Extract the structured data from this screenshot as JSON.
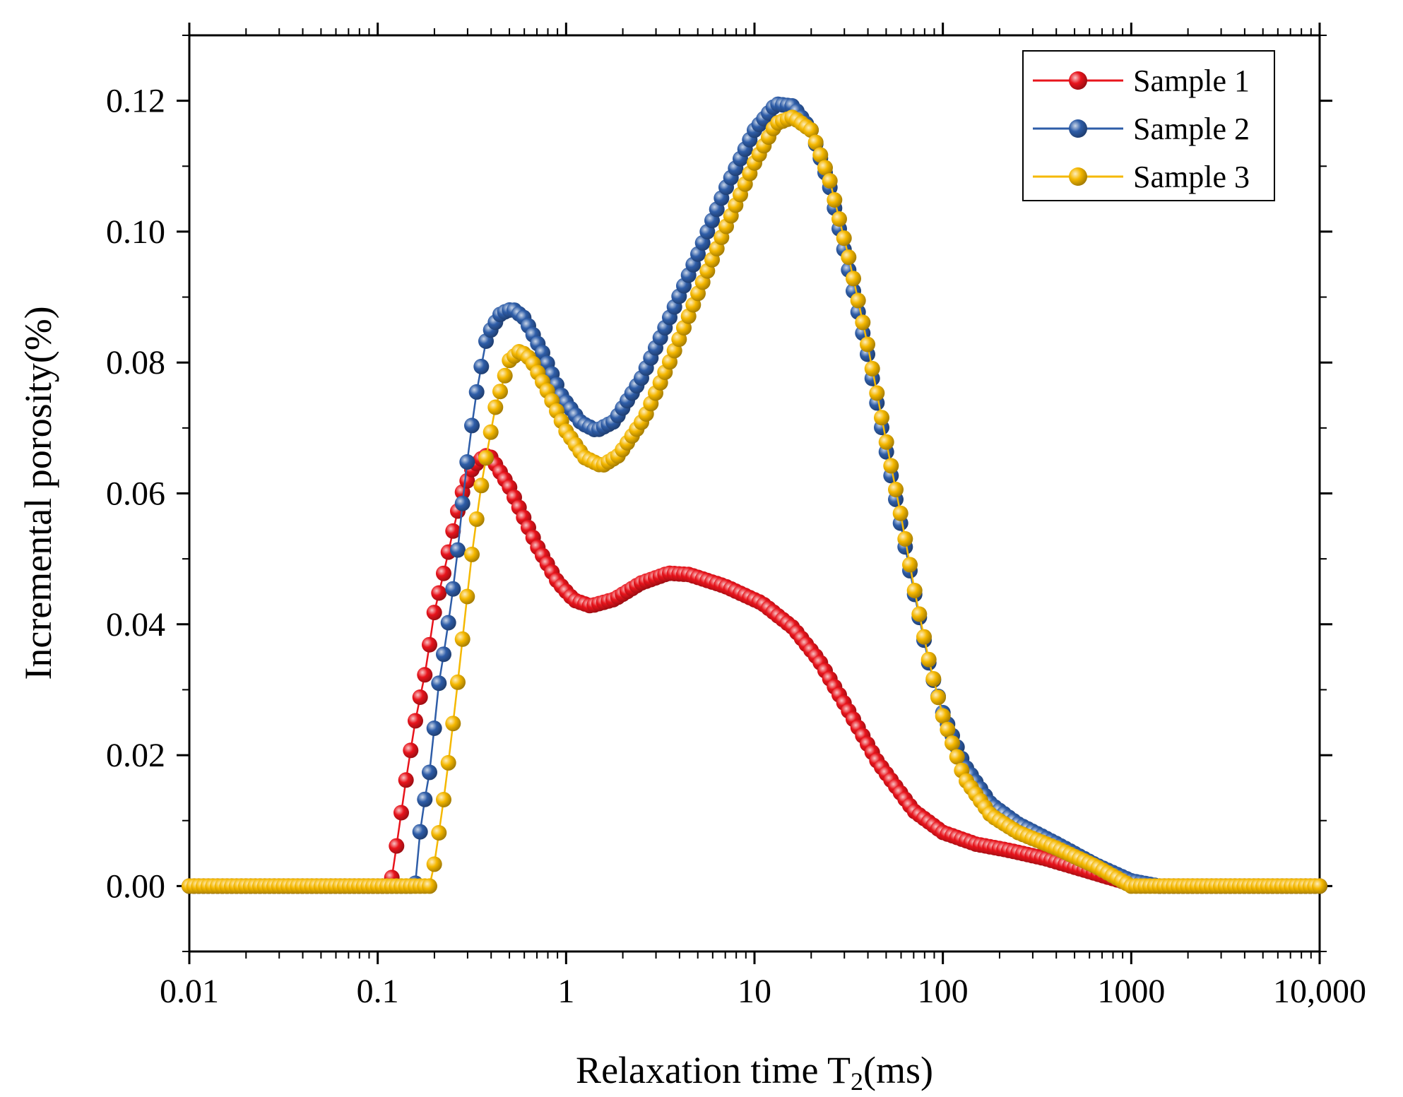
{
  "chart_data": {
    "type": "scatter",
    "title": "",
    "xlabel": "Relaxation time T",
    "xlabel_subscript": "2",
    "xlabel_suffix": "(ms)",
    "ylabel": "Incremental porosity(%)",
    "xscale": "log",
    "xlim": [
      0.01,
      10000
    ],
    "ylim": [
      -0.01,
      0.13
    ],
    "x_ticks": [
      {
        "value": 0.01,
        "label": "0.01"
      },
      {
        "value": 0.1,
        "label": "0.1"
      },
      {
        "value": 1,
        "label": "1"
      },
      {
        "value": 10,
        "label": "10"
      },
      {
        "value": 100,
        "label": "100"
      },
      {
        "value": 1000,
        "label": "1000"
      },
      {
        "value": 10000,
        "label": "10,000"
      }
    ],
    "y_ticks": [
      {
        "value": 0.0,
        "label": "0.00"
      },
      {
        "value": 0.02,
        "label": "0.02"
      },
      {
        "value": 0.04,
        "label": "0.04"
      },
      {
        "value": 0.06,
        "label": "0.06"
      },
      {
        "value": 0.08,
        "label": "0.08"
      },
      {
        "value": 0.1,
        "label": "0.10"
      },
      {
        "value": 0.12,
        "label": "0.12"
      }
    ],
    "legend_position": "top-right",
    "grid": false,
    "series": [
      {
        "name": "Sample 1",
        "color": "#e8141c",
        "points": [
          [
            0.01,
            0
          ],
          [
            0.117,
            0
          ],
          [
            0.125,
            0.0055
          ],
          [
            0.14,
            0.0155
          ],
          [
            0.16,
            0.026
          ],
          [
            0.18,
            0.033
          ],
          [
            0.2,
            0.042
          ],
          [
            0.22,
            0.0468
          ],
          [
            0.25,
            0.054
          ],
          [
            0.28,
            0.06
          ],
          [
            0.32,
            0.064
          ],
          [
            0.37,
            0.0658
          ],
          [
            0.4,
            0.0655
          ],
          [
            0.5,
            0.061
          ],
          [
            0.7,
            0.052
          ],
          [
            0.9,
            0.0465
          ],
          [
            1.1,
            0.0437
          ],
          [
            1.35,
            0.0428
          ],
          [
            1.8,
            0.0438
          ],
          [
            2.5,
            0.0463
          ],
          [
            3.5,
            0.0478
          ],
          [
            4.5,
            0.0476
          ],
          [
            7,
            0.0458
          ],
          [
            11,
            0.0432
          ],
          [
            16,
            0.0395
          ],
          [
            22,
            0.0345
          ],
          [
            32,
            0.0265
          ],
          [
            45,
            0.019
          ],
          [
            70,
            0.0115
          ],
          [
            100,
            0.0082
          ],
          [
            150,
            0.0064
          ],
          [
            220,
            0.0055
          ],
          [
            350,
            0.0042
          ],
          [
            600,
            0.0022
          ],
          [
            1000,
            0.0003
          ],
          [
            1400,
            0
          ],
          [
            10000,
            0
          ]
        ]
      },
      {
        "name": "Sample 2",
        "color": "#2e5da8",
        "points": [
          [
            0.01,
            0
          ],
          [
            0.158,
            0
          ],
          [
            0.17,
            0.01
          ],
          [
            0.19,
            0.018
          ],
          [
            0.21,
            0.0305
          ],
          [
            0.23,
            0.0375
          ],
          [
            0.26,
            0.0485
          ],
          [
            0.29,
            0.062
          ],
          [
            0.33,
            0.0745
          ],
          [
            0.38,
            0.084
          ],
          [
            0.45,
            0.0875
          ],
          [
            0.52,
            0.0882
          ],
          [
            0.6,
            0.0868
          ],
          [
            0.75,
            0.0815
          ],
          [
            0.95,
            0.0748
          ],
          [
            1.2,
            0.0708
          ],
          [
            1.45,
            0.0696
          ],
          [
            1.8,
            0.071
          ],
          [
            2.5,
            0.0775
          ],
          [
            3.5,
            0.0865
          ],
          [
            5,
            0.0965
          ],
          [
            7,
            0.1065
          ],
          [
            10,
            0.1155
          ],
          [
            13,
            0.1195
          ],
          [
            16,
            0.1192
          ],
          [
            20,
            0.1155
          ],
          [
            25,
            0.107
          ],
          [
            32,
            0.0935
          ],
          [
            40,
            0.081
          ],
          [
            50,
            0.0665
          ],
          [
            60,
            0.055
          ],
          [
            72,
            0.0435
          ],
          [
            85,
            0.0335
          ],
          [
            100,
            0.0265
          ],
          [
            130,
            0.0185
          ],
          [
            180,
            0.0125
          ],
          [
            250,
            0.0095
          ],
          [
            400,
            0.0065
          ],
          [
            650,
            0.0032
          ],
          [
            1000,
            0.0008
          ],
          [
            1400,
            0
          ],
          [
            10000,
            0
          ]
        ]
      },
      {
        "name": "Sample 3",
        "color": "#f5b800",
        "points": [
          [
            0.01,
            0
          ],
          [
            0.19,
            0
          ],
          [
            0.2,
            0.0035
          ],
          [
            0.22,
            0.0115
          ],
          [
            0.24,
            0.02
          ],
          [
            0.26,
            0.0285
          ],
          [
            0.29,
            0.041
          ],
          [
            0.32,
            0.052
          ],
          [
            0.36,
            0.0625
          ],
          [
            0.42,
            0.073
          ],
          [
            0.5,
            0.0803
          ],
          [
            0.57,
            0.0818
          ],
          [
            0.65,
            0.0805
          ],
          [
            0.8,
            0.0755
          ],
          [
            1.0,
            0.0695
          ],
          [
            1.25,
            0.0655
          ],
          [
            1.55,
            0.0642
          ],
          [
            1.9,
            0.0658
          ],
          [
            2.6,
            0.0715
          ],
          [
            3.6,
            0.0805
          ],
          [
            5,
            0.0905
          ],
          [
            7,
            0.1005
          ],
          [
            10,
            0.1105
          ],
          [
            13,
            0.1165
          ],
          [
            16,
            0.1175
          ],
          [
            20,
            0.1155
          ],
          [
            25,
            0.108
          ],
          [
            32,
            0.0955
          ],
          [
            40,
            0.0825
          ],
          [
            50,
            0.068
          ],
          [
            60,
            0.0565
          ],
          [
            72,
            0.044
          ],
          [
            85,
            0.034
          ],
          [
            100,
            0.026
          ],
          [
            130,
            0.0165
          ],
          [
            180,
            0.0108
          ],
          [
            250,
            0.0082
          ],
          [
            400,
            0.0058
          ],
          [
            650,
            0.003
          ],
          [
            1000,
            0
          ],
          [
            10000,
            0
          ]
        ]
      }
    ]
  }
}
